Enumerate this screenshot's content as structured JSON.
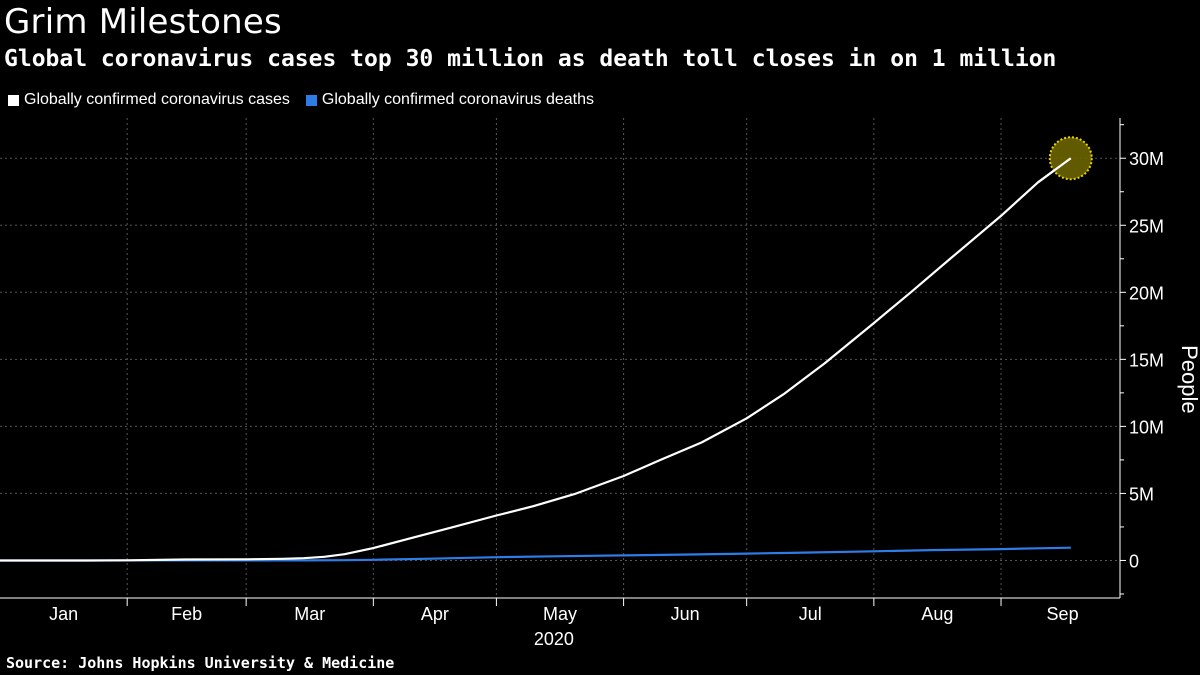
{
  "header": {
    "title": "Grim Milestones",
    "subtitle": "Global coronavirus cases top 30 million as death toll closes in on 1 million"
  },
  "footer": {
    "source": "Source: Johns Hopkins University & Medicine"
  },
  "colors": {
    "background": "#000000",
    "cases": "#ffffff",
    "deaths": "#2e7de6",
    "grid": "#555555",
    "highlight_fill": "#6b6400",
    "highlight_stroke": "#e6d400"
  },
  "chart_data": {
    "type": "line",
    "title": "Grim Milestones",
    "subtitle": "Global coronavirus cases top 30 million as death toll closes in on 1 million",
    "ylabel": "People",
    "xlabel": "2020",
    "x_ticks": [
      "Jan",
      "Feb",
      "Mar",
      "Apr",
      "May",
      "Jun",
      "Jul",
      "Aug",
      "Sep"
    ],
    "y_ticks": [
      "0",
      "5M",
      "10M",
      "15M",
      "20M",
      "25M",
      "30M"
    ],
    "y_tick_values": [
      0,
      5000000,
      10000000,
      15000000,
      20000000,
      25000000,
      30000000
    ],
    "ylim": [
      -2800000,
      33000000
    ],
    "xlim": [
      "2020-01-01",
      "2020-09-30"
    ],
    "grid": true,
    "legend_position": "top-left",
    "highlight": {
      "series": "Globally confirmed coronavirus cases",
      "x": "2020-09-18",
      "y": 30000000
    },
    "series": [
      {
        "name": "Globally confirmed coronavirus cases",
        "x": [
          "2020-01-01",
          "2020-01-22",
          "2020-02-01",
          "2020-02-15",
          "2020-03-01",
          "2020-03-10",
          "2020-03-15",
          "2020-03-20",
          "2020-03-25",
          "2020-04-01",
          "2020-04-10",
          "2020-04-20",
          "2020-05-01",
          "2020-05-10",
          "2020-05-20",
          "2020-06-01",
          "2020-06-10",
          "2020-06-20",
          "2020-07-01",
          "2020-07-10",
          "2020-07-20",
          "2020-08-01",
          "2020-08-10",
          "2020-08-20",
          "2020-09-01",
          "2020-09-10",
          "2020-09-18"
        ],
        "values": [
          0,
          600,
          12000,
          69000,
          88000,
          120000,
          170000,
          270000,
          470000,
          920000,
          1650000,
          2450000,
          3350000,
          4050000,
          4950000,
          6300000,
          7500000,
          8800000,
          10600000,
          12400000,
          14700000,
          17700000,
          20000000,
          22600000,
          25700000,
          28200000,
          30000000
        ]
      },
      {
        "name": "Globally confirmed coronavirus deaths",
        "x": [
          "2020-01-01",
          "2020-01-22",
          "2020-02-15",
          "2020-03-01",
          "2020-03-15",
          "2020-03-25",
          "2020-04-01",
          "2020-04-15",
          "2020-05-01",
          "2020-05-15",
          "2020-06-01",
          "2020-06-15",
          "2020-07-01",
          "2020-07-15",
          "2020-08-01",
          "2020-08-15",
          "2020-09-01",
          "2020-09-10",
          "2020-09-18"
        ],
        "values": [
          0,
          17,
          1700,
          3000,
          6500,
          21000,
          47000,
          130000,
          240000,
          310000,
          375000,
          440000,
          515000,
          585000,
          685000,
          770000,
          850000,
          910000,
          955000
        ]
      }
    ]
  }
}
